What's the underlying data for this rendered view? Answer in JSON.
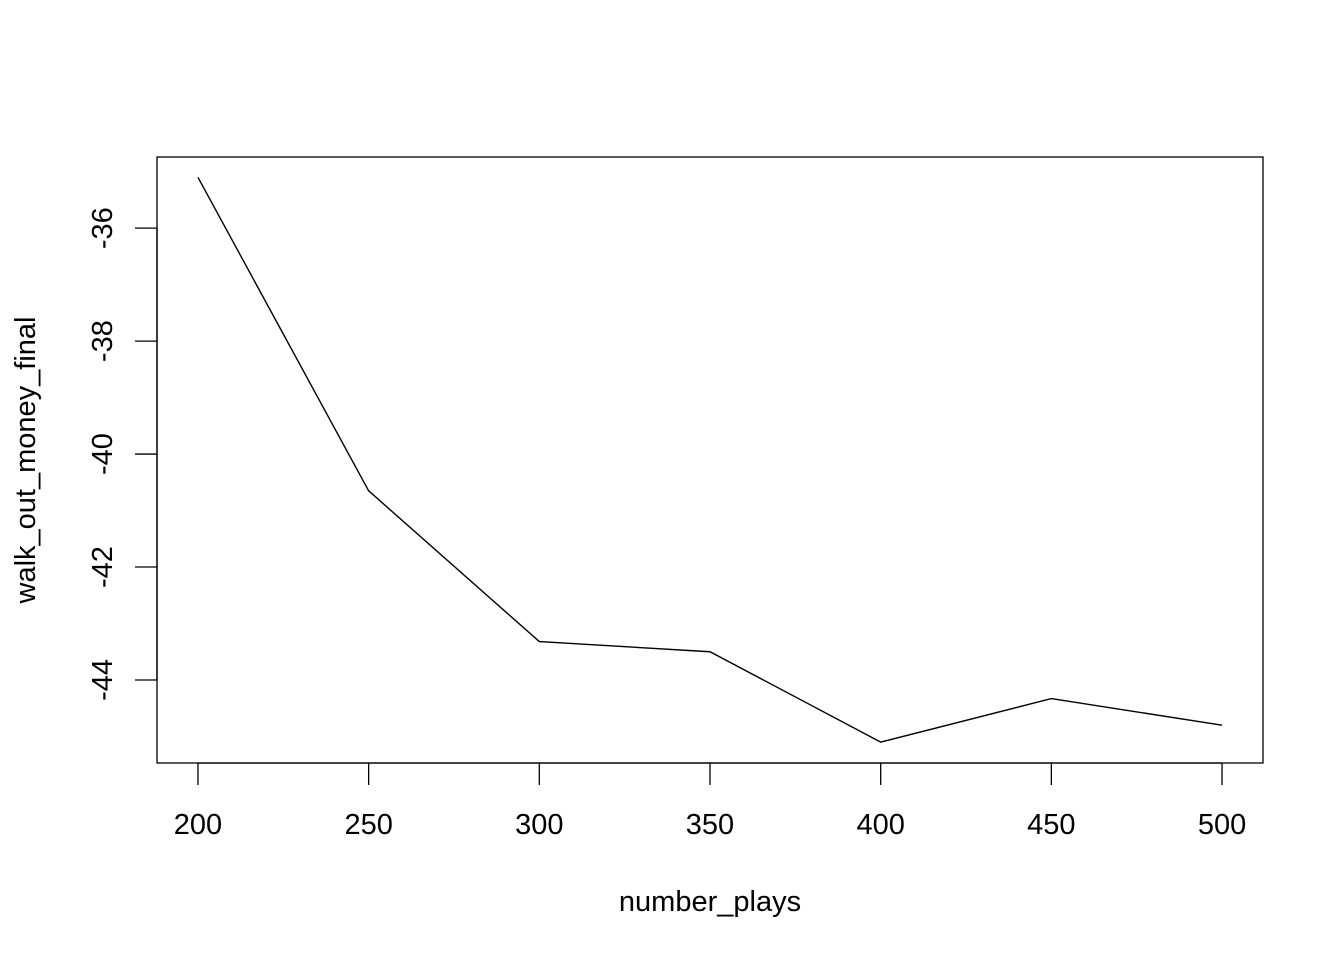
{
  "chart_data": {
    "type": "line",
    "title": "",
    "xlabel": "number_plays",
    "ylabel": "walk_out_money_final",
    "x": [
      200,
      250,
      300,
      350,
      400,
      450,
      500
    ],
    "series": [
      {
        "values": [
          -35.1,
          -40.65,
          -43.32,
          -43.5,
          -45.1,
          -44.33,
          -44.8
        ]
      }
    ],
    "xlim": [
      188,
      512
    ],
    "ylim": [
      -45.47,
      -34.74
    ],
    "x_ticks": [
      200,
      250,
      300,
      350,
      400,
      450,
      500
    ],
    "y_ticks": [
      -36,
      -38,
      -40,
      -42,
      -44
    ],
    "x_tick_labels": [
      "200",
      "250",
      "300",
      "350",
      "400",
      "450",
      "500"
    ],
    "y_tick_labels": [
      "-36",
      "-38",
      "-40",
      "-42",
      "-44"
    ],
    "grid": false,
    "legend": "none",
    "line_color": "#000000"
  }
}
